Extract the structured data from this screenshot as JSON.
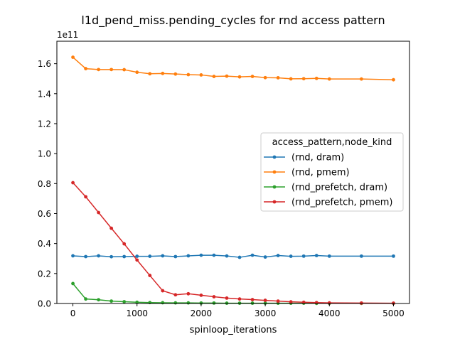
{
  "chart_data": {
    "type": "line",
    "title": "l1d_pend_miss.pending_cycles for rnd access pattern",
    "xlabel": "spinloop_iterations",
    "ylabel": "",
    "y_offset_label": "1e11",
    "xlim": [
      -250,
      5250
    ],
    "ylim": [
      0,
      1.75
    ],
    "x_ticks": [
      0,
      1000,
      2000,
      3000,
      4000,
      5000
    ],
    "x_tick_labels": [
      "0",
      "1000",
      "2000",
      "3000",
      "4000",
      "5000"
    ],
    "y_ticks": [
      0.0,
      0.2,
      0.4,
      0.6,
      0.8,
      1.0,
      1.2,
      1.4,
      1.6
    ],
    "y_tick_labels": [
      "0.0",
      "0.2",
      "0.4",
      "0.6",
      "0.8",
      "1.0",
      "1.2",
      "1.4",
      "1.6"
    ],
    "grid": false,
    "legend": {
      "title": "access_pattern,node_kind",
      "placement": "center-right"
    },
    "x": [
      0,
      200,
      400,
      600,
      800,
      1000,
      1200,
      1400,
      1600,
      1800,
      2000,
      2200,
      2400,
      2600,
      2800,
      3000,
      3200,
      3400,
      3600,
      3800,
      4000,
      4500,
      5000
    ],
    "series": [
      {
        "name": "(rnd, dram)",
        "color": "#1f77b4",
        "values": [
          0.318,
          0.313,
          0.318,
          0.312,
          0.313,
          0.315,
          0.315,
          0.318,
          0.313,
          0.318,
          0.322,
          0.322,
          0.317,
          0.308,
          0.322,
          0.31,
          0.32,
          0.315,
          0.316,
          0.32,
          0.316,
          0.316,
          0.316
        ]
      },
      {
        "name": "(rnd, pmem)",
        "color": "#ff7f0e",
        "values": [
          1.643,
          1.567,
          1.561,
          1.561,
          1.56,
          1.543,
          1.533,
          1.535,
          1.531,
          1.527,
          1.525,
          1.515,
          1.517,
          1.512,
          1.515,
          1.507,
          1.506,
          1.499,
          1.5,
          1.502,
          1.498,
          1.498,
          1.493
        ]
      },
      {
        "name": "(rnd_prefetch, dram)",
        "color": "#2ca02c",
        "values": [
          0.133,
          0.03,
          0.025,
          0.016,
          0.012,
          0.008,
          0.006,
          0.005,
          0.004,
          0.004,
          0.003,
          0.003,
          0.002,
          0.002,
          0.002,
          0.002,
          0.002,
          0.002,
          0.002,
          0.001,
          0.001,
          0.001,
          0.001
        ]
      },
      {
        "name": "(rnd_prefetch, pmem)",
        "color": "#d62728",
        "values": [
          0.806,
          0.712,
          0.607,
          0.502,
          0.398,
          0.29,
          0.187,
          0.085,
          0.058,
          0.065,
          0.055,
          0.045,
          0.036,
          0.03,
          0.026,
          0.021,
          0.016,
          0.011,
          0.008,
          0.006,
          0.004,
          0.003,
          0.002
        ]
      }
    ]
  }
}
